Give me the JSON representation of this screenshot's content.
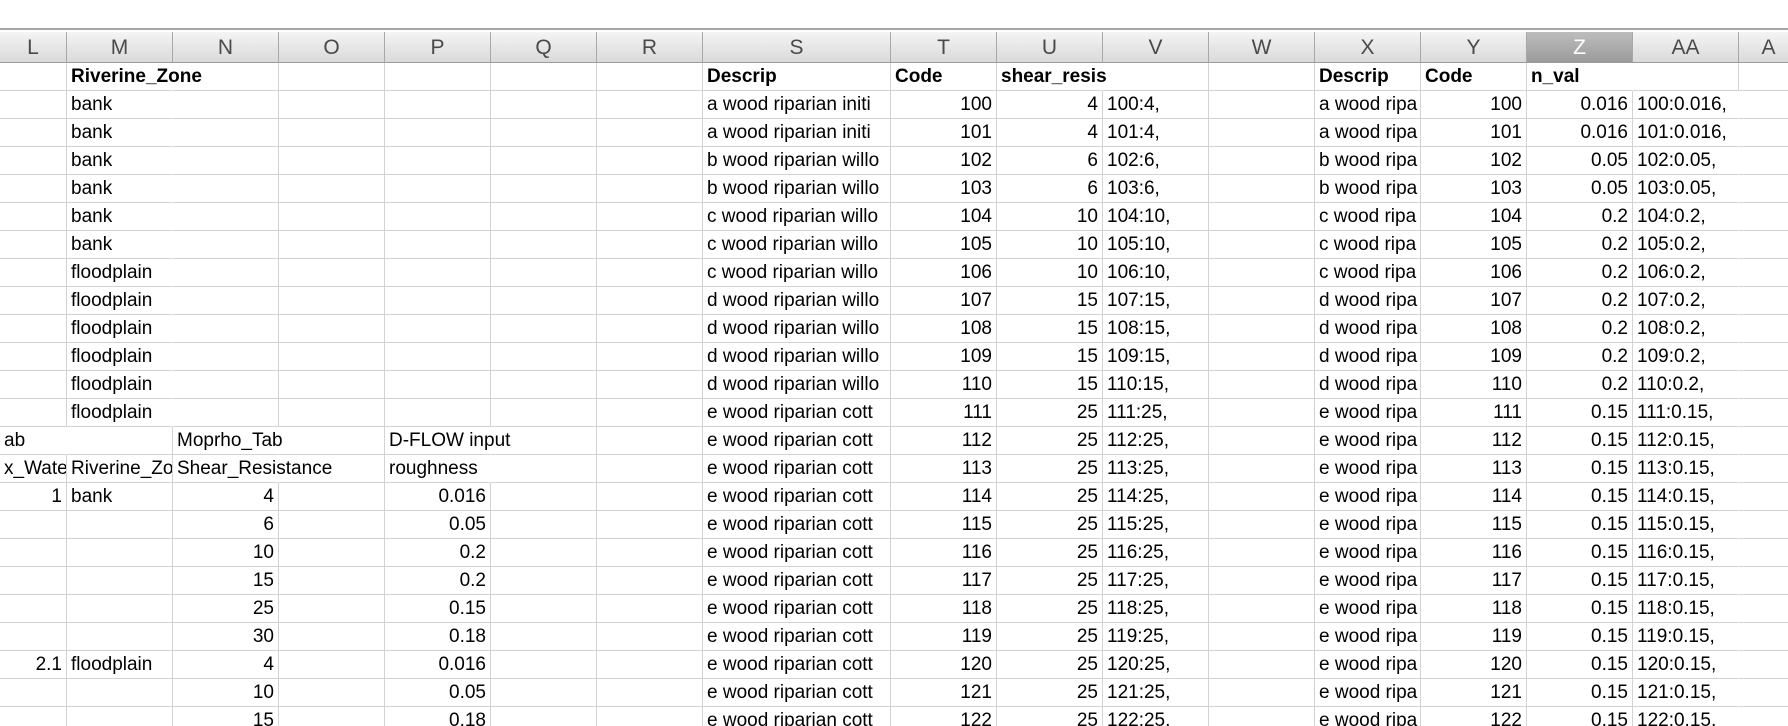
{
  "column_headers": [
    "L",
    "M",
    "N",
    "O",
    "P",
    "Q",
    "R",
    "S",
    "T",
    "U",
    "V",
    "W",
    "X",
    "Y",
    "Z",
    "AA",
    "A"
  ],
  "selected_column": "Z",
  "rows": [
    {
      "M": "Riverine_Zone",
      "S": "Descrip",
      "T": "Code",
      "U": "shear_resis",
      "X": "Descrip",
      "Y": "Code",
      "Z": "n_val"
    },
    {
      "M": "bank",
      "S": "a wood riparian initi",
      "T": "100",
      "U": "4",
      "V": "100:4,",
      "X": "a wood ripa",
      "Y": "100",
      "Z": "0.016",
      "AA": "100:0.016,"
    },
    {
      "M": "bank",
      "S": "a wood riparian initi",
      "T": "101",
      "U": "4",
      "V": "101:4,",
      "X": "a wood ripa",
      "Y": "101",
      "Z": "0.016",
      "AA": "101:0.016,"
    },
    {
      "M": "bank",
      "S": "b wood riparian willo",
      "T": "102",
      "U": "6",
      "V": "102:6,",
      "X": "b wood ripa",
      "Y": "102",
      "Z": "0.05",
      "AA": "102:0.05,"
    },
    {
      "M": "bank",
      "S": "b wood riparian willo",
      "T": "103",
      "U": "6",
      "V": "103:6,",
      "X": "b wood ripa",
      "Y": "103",
      "Z": "0.05",
      "AA": "103:0.05,"
    },
    {
      "M": "bank",
      "S": "c wood riparian willo",
      "T": "104",
      "U": "10",
      "V": "104:10,",
      "X": "c wood ripa",
      "Y": "104",
      "Z": "0.2",
      "AA": "104:0.2,"
    },
    {
      "M": "bank",
      "S": "c wood riparian willo",
      "T": "105",
      "U": "10",
      "V": "105:10,",
      "X": "c wood ripa",
      "Y": "105",
      "Z": "0.2",
      "AA": "105:0.2,"
    },
    {
      "M": "floodplain",
      "S": "c wood riparian willo",
      "T": "106",
      "U": "10",
      "V": "106:10,",
      "X": "c wood ripa",
      "Y": "106",
      "Z": "0.2",
      "AA": "106:0.2,"
    },
    {
      "M": "floodplain",
      "S": "d wood riparian willo",
      "T": "107",
      "U": "15",
      "V": "107:15,",
      "X": "d wood ripa",
      "Y": "107",
      "Z": "0.2",
      "AA": "107:0.2,"
    },
    {
      "M": "floodplain",
      "S": "d wood riparian willo",
      "T": "108",
      "U": "15",
      "V": "108:15,",
      "X": "d wood ripa",
      "Y": "108",
      "Z": "0.2",
      "AA": "108:0.2,"
    },
    {
      "M": "floodplain",
      "S": "d wood riparian willo",
      "T": "109",
      "U": "15",
      "V": "109:15,",
      "X": "d wood ripa",
      "Y": "109",
      "Z": "0.2",
      "AA": "109:0.2,"
    },
    {
      "M": "floodplain",
      "S": "d wood riparian willo",
      "T": "110",
      "U": "15",
      "V": "110:15,",
      "X": "d wood ripa",
      "Y": "110",
      "Z": "0.2",
      "AA": "110:0.2,"
    },
    {
      "M": "floodplain",
      "S": "e wood riparian cott",
      "T": "111",
      "U": "25",
      "V": "111:25,",
      "X": "e wood ripa",
      "Y": "111",
      "Z": "0.15",
      "AA": "111:0.15,"
    },
    {
      "L": "ab",
      "N": "Moprho_Tab",
      "P": "D-FLOW input",
      "S": "e wood riparian cott",
      "T": "112",
      "U": "25",
      "V": "112:25,",
      "X": "e wood ripa",
      "Y": "112",
      "Z": "0.15",
      "AA": "112:0.15,"
    },
    {
      "L": "x_Wate",
      "M": "Riverine_Zo",
      "N": "Shear_Resistance",
      "P": "roughness",
      "S": "e wood riparian cott",
      "T": "113",
      "U": "25",
      "V": "113:25,",
      "X": "e wood ripa",
      "Y": "113",
      "Z": "0.15",
      "AA": "113:0.15,"
    },
    {
      "L": "1",
      "M": "bank",
      "N": "4",
      "P": "0.016",
      "S": "e wood riparian cott",
      "T": "114",
      "U": "25",
      "V": "114:25,",
      "X": "e wood ripa",
      "Y": "114",
      "Z": "0.15",
      "AA": "114:0.15,"
    },
    {
      "N": "6",
      "P": "0.05",
      "S": "e wood riparian cott",
      "T": "115",
      "U": "25",
      "V": "115:25,",
      "X": "e wood ripa",
      "Y": "115",
      "Z": "0.15",
      "AA": "115:0.15,"
    },
    {
      "N": "10",
      "P": "0.2",
      "S": "e wood riparian cott",
      "T": "116",
      "U": "25",
      "V": "116:25,",
      "X": "e wood ripa",
      "Y": "116",
      "Z": "0.15",
      "AA": "116:0.15,"
    },
    {
      "N": "15",
      "P": "0.2",
      "S": "e wood riparian cott",
      "T": "117",
      "U": "25",
      "V": "117:25,",
      "X": "e wood ripa",
      "Y": "117",
      "Z": "0.15",
      "AA": "117:0.15,"
    },
    {
      "N": "25",
      "P": "0.15",
      "S": "e wood riparian cott",
      "T": "118",
      "U": "25",
      "V": "118:25,",
      "X": "e wood ripa",
      "Y": "118",
      "Z": "0.15",
      "AA": "118:0.15,"
    },
    {
      "N": "30",
      "P": "0.18",
      "S": "e wood riparian cott",
      "T": "119",
      "U": "25",
      "V": "119:25,",
      "X": "e wood ripa",
      "Y": "119",
      "Z": "0.15",
      "AA": "119:0.15,"
    },
    {
      "L": "2.1",
      "M": "floodplain",
      "N": "4",
      "P": "0.016",
      "S": "e wood riparian cott",
      "T": "120",
      "U": "25",
      "V": "120:25,",
      "X": "e wood ripa",
      "Y": "120",
      "Z": "0.15",
      "AA": "120:0.15,"
    },
    {
      "N": "10",
      "P": "0.05",
      "S": "e wood riparian cott",
      "T": "121",
      "U": "25",
      "V": "121:25,",
      "X": "e wood ripa",
      "Y": "121",
      "Z": "0.15",
      "AA": "121:0.15,"
    },
    {
      "N": "15",
      "P": "0.18",
      "S": "e wood riparian cott",
      "T": "122",
      "U": "25",
      "V": "122:25,",
      "X": "e wood ripa",
      "Y": "122",
      "Z": "0.15",
      "AA": "122:0.15,"
    }
  ]
}
